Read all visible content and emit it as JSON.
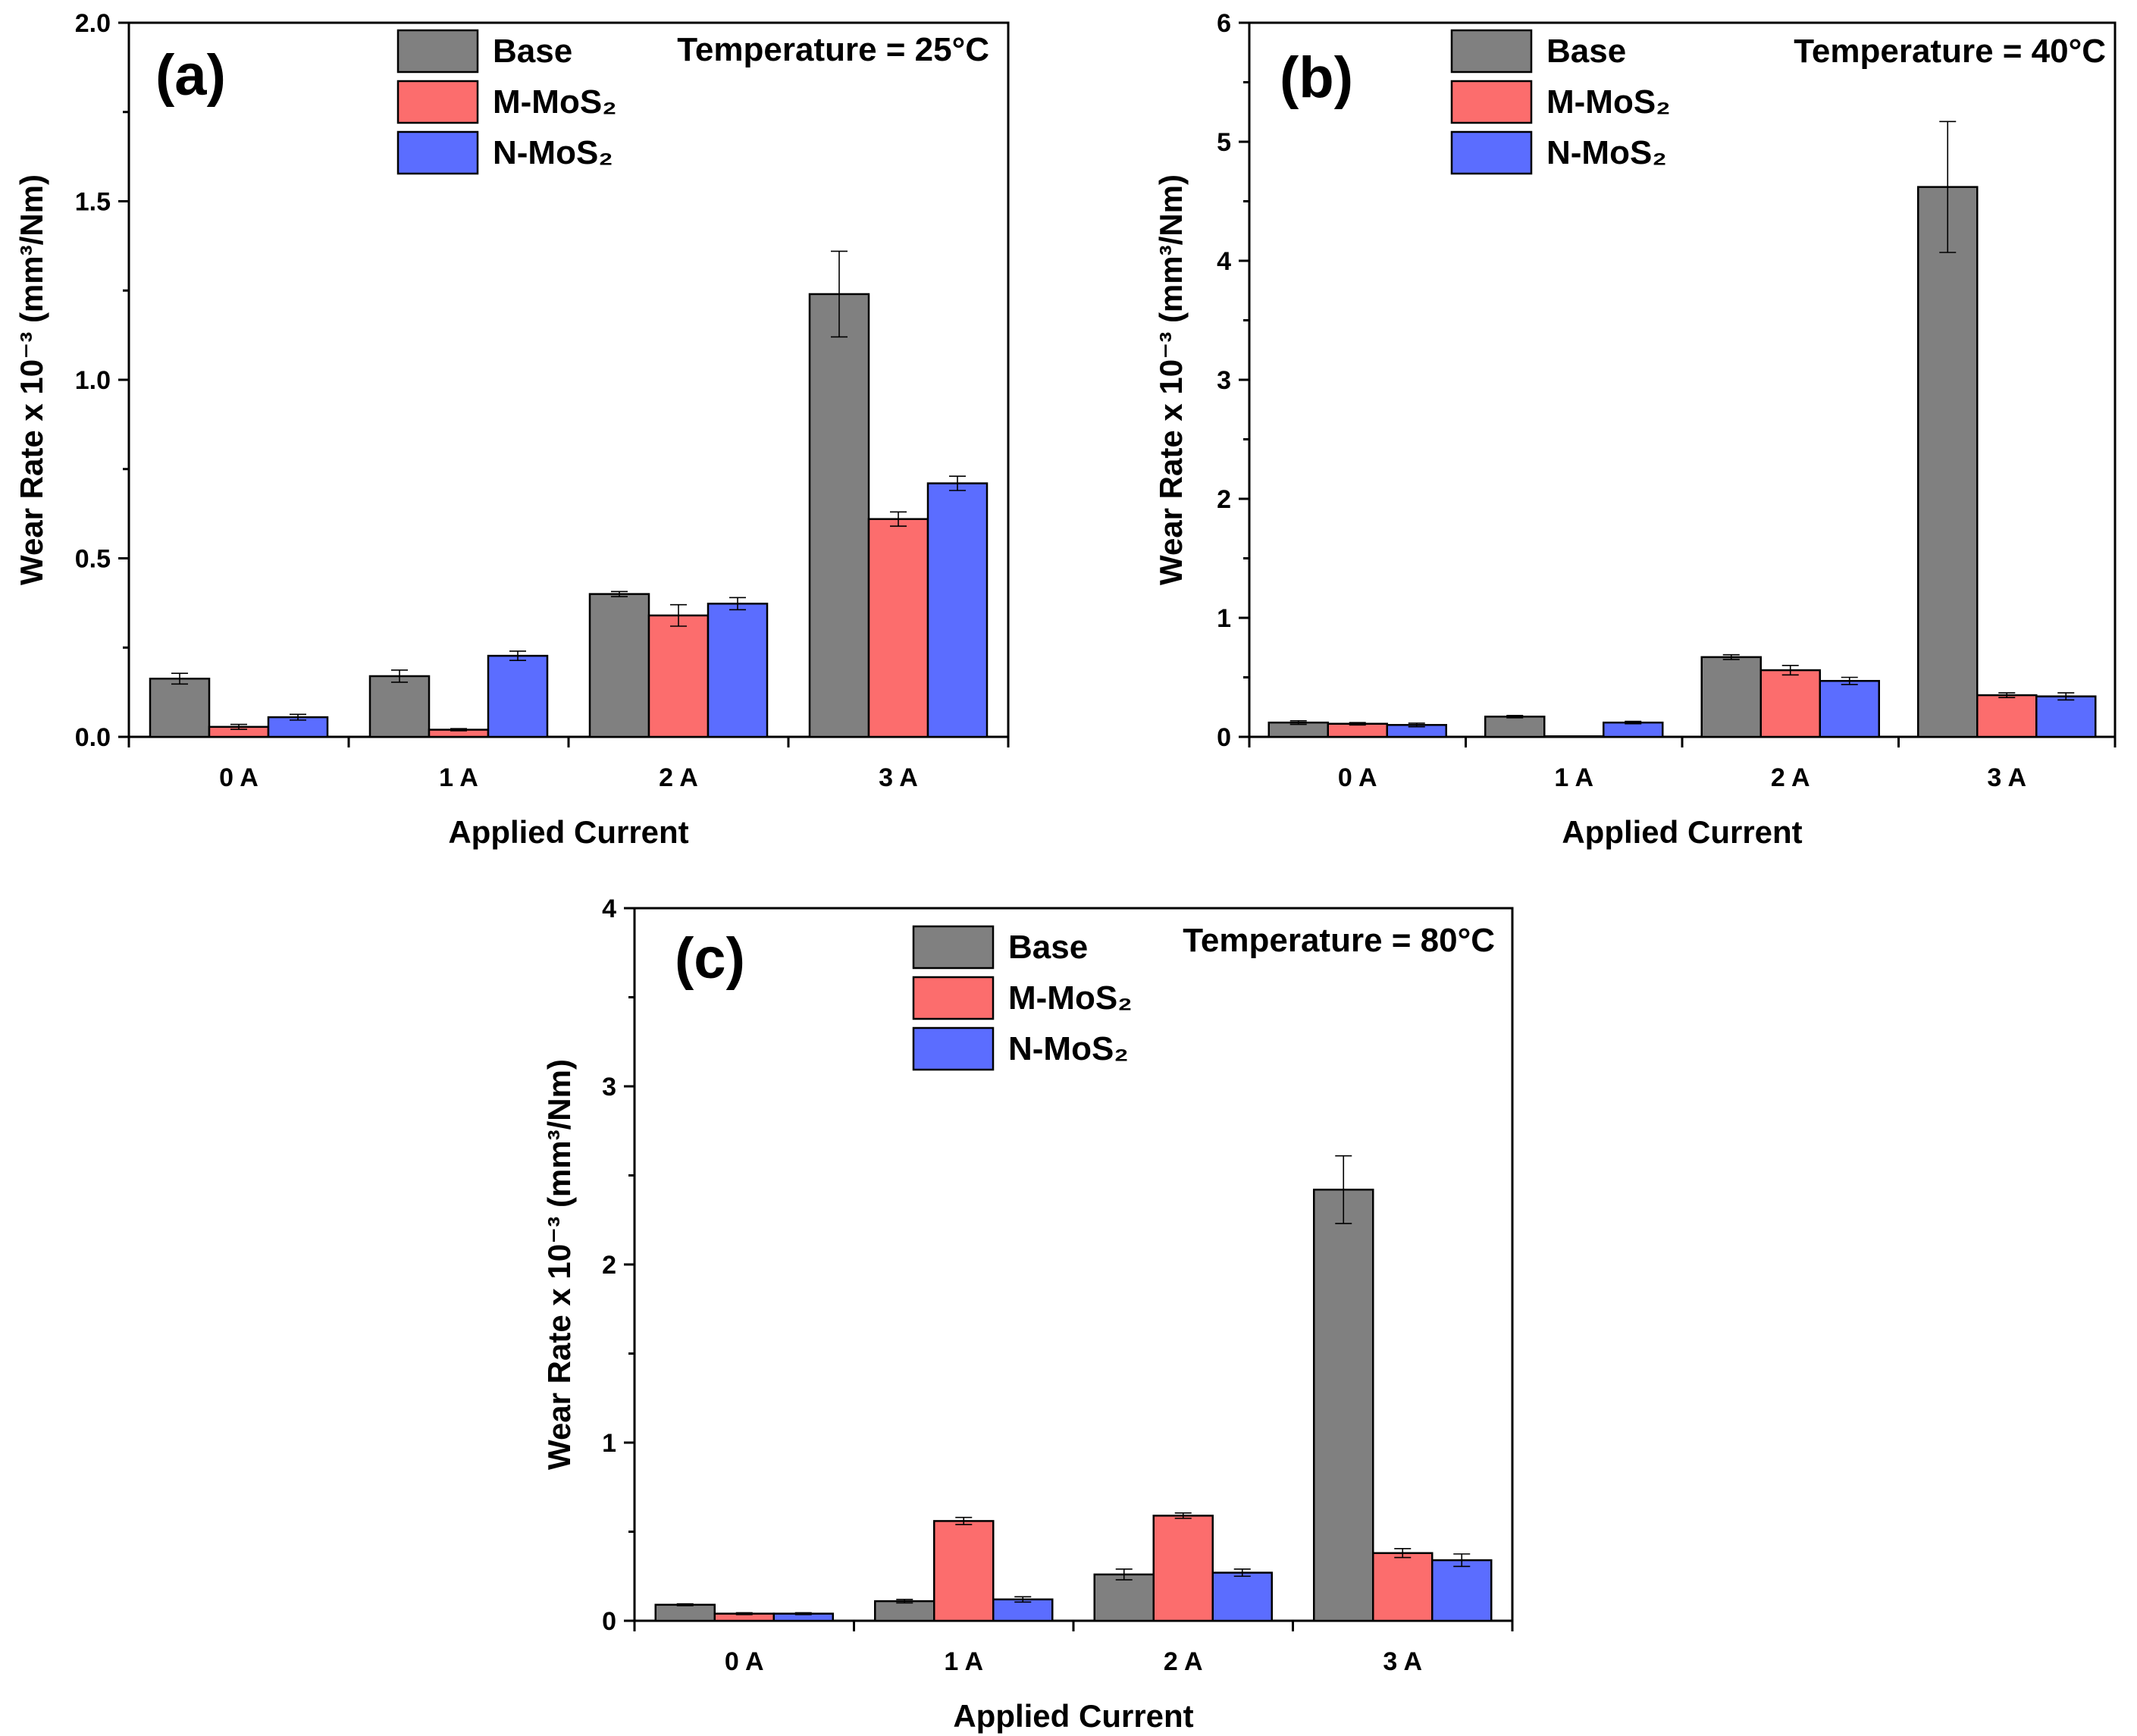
{
  "chart_data": [
    {
      "type": "bar",
      "panel_label": "(a)",
      "annotation": "Temperature = 25°C",
      "xlabel": "Applied Current",
      "ylabel": "Wear Rate x 10⁻³ (mm³/Nm)",
      "categories": [
        "0 A",
        "1 A",
        "2 A",
        "3 A"
      ],
      "ylim": [
        0,
        2.0
      ],
      "yticks": [
        0,
        0.5,
        1.0,
        1.5,
        2.0
      ],
      "ytick_labels": [
        "0.0",
        "0.5",
        "1.0",
        "1.5",
        "2.0"
      ],
      "legend_position": "top-center",
      "series": [
        {
          "name": "Base",
          "color": "#808080",
          "values": [
            0.163,
            0.17,
            0.4,
            1.24
          ],
          "errors": [
            0.015,
            0.017,
            0.007,
            0.12
          ]
        },
        {
          "name": "M-MoS₂",
          "color": "#fc6d6d",
          "values": [
            0.028,
            0.02,
            0.34,
            0.61
          ],
          "errors": [
            0.007,
            0.003,
            0.03,
            0.02
          ]
        },
        {
          "name": "N-MoS₂",
          "color": "#5b6dff",
          "values": [
            0.055,
            0.227,
            0.373,
            0.71
          ],
          "errors": [
            0.008,
            0.013,
            0.017,
            0.02
          ]
        }
      ]
    },
    {
      "type": "bar",
      "panel_label": "(b)",
      "annotation": "Temperature = 40°C",
      "xlabel": "Applied Current",
      "ylabel": "Wear Rate x 10⁻³ (mm³/Nm)",
      "categories": [
        "0 A",
        "1 A",
        "2 A",
        "3 A"
      ],
      "ylim": [
        0,
        6
      ],
      "yticks": [
        0,
        1,
        2,
        3,
        4,
        5,
        6
      ],
      "ytick_labels": [
        "0",
        "1",
        "2",
        "3",
        "4",
        "5",
        "6"
      ],
      "legend_position": "top-center",
      "series": [
        {
          "name": "Base",
          "color": "#808080",
          "values": [
            0.12,
            0.17,
            0.67,
            4.62
          ],
          "errors": [
            0.015,
            0.01,
            0.02,
            0.55
          ]
        },
        {
          "name": "M-MoS₂",
          "color": "#fc6d6d",
          "values": [
            0.11,
            0.005,
            0.56,
            0.35
          ],
          "errors": [
            0.01,
            0.002,
            0.04,
            0.02
          ]
        },
        {
          "name": "N-MoS₂",
          "color": "#5b6dff",
          "values": [
            0.1,
            0.12,
            0.47,
            0.34
          ],
          "errors": [
            0.015,
            0.01,
            0.03,
            0.03
          ]
        }
      ]
    },
    {
      "type": "bar",
      "panel_label": "(c)",
      "annotation": "Temperature = 80°C",
      "xlabel": "Applied Current",
      "ylabel": "Wear Rate x 10⁻³ (mm³/Nm)",
      "categories": [
        "0 A",
        "1 A",
        "2 A",
        "3 A"
      ],
      "ylim": [
        0,
        4
      ],
      "yticks": [
        0,
        1,
        2,
        3,
        4
      ],
      "ytick_labels": [
        "0",
        "1",
        "2",
        "3",
        "4"
      ],
      "legend_position": "top-center",
      "series": [
        {
          "name": "Base",
          "color": "#808080",
          "values": [
            0.09,
            0.11,
            0.26,
            2.42
          ],
          "errors": [
            0.005,
            0.01,
            0.03,
            0.19
          ]
        },
        {
          "name": "M-MoS₂",
          "color": "#fc6d6d",
          "values": [
            0.04,
            0.56,
            0.59,
            0.38
          ],
          "errors": [
            0.005,
            0.02,
            0.015,
            0.025
          ]
        },
        {
          "name": "N-MoS₂",
          "color": "#5b6dff",
          "values": [
            0.04,
            0.12,
            0.27,
            0.34
          ],
          "errors": [
            0.005,
            0.015,
            0.02,
            0.035
          ]
        }
      ]
    }
  ]
}
